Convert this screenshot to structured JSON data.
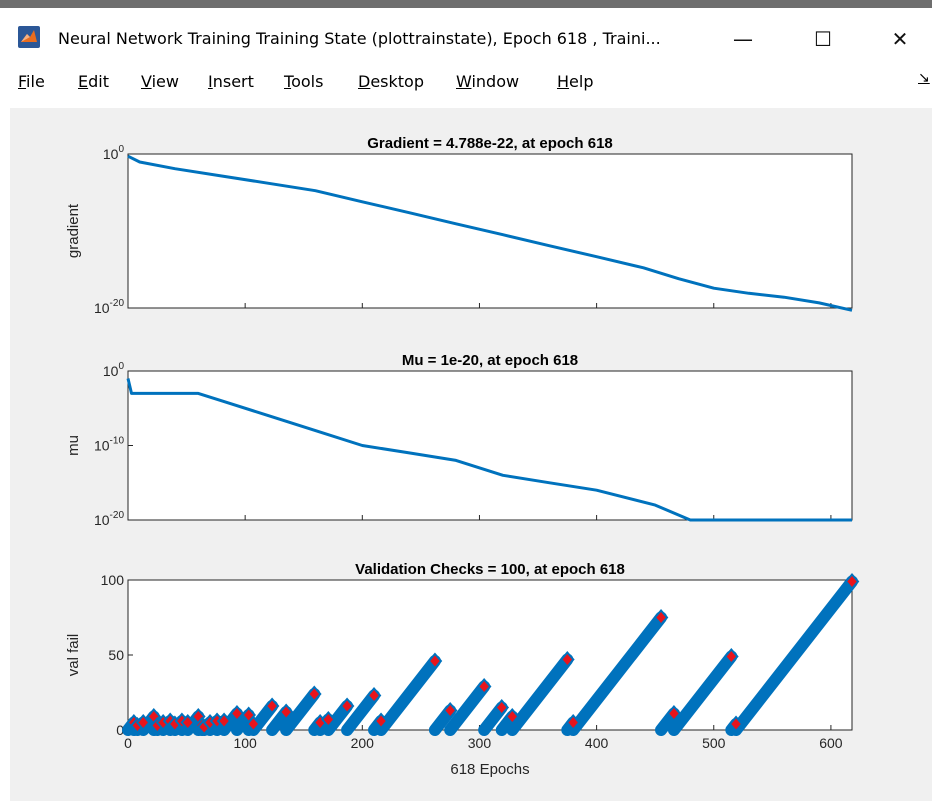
{
  "window": {
    "title": "Neural Network Training Training State (plottrainstate), Epoch 618 , Traini...",
    "minimize_glyph": "—",
    "maximize_glyph": "☐",
    "close_glyph": "✕"
  },
  "menu": [
    "File",
    "Edit",
    "View",
    "Insert",
    "Tools",
    "Desktop",
    "Window",
    "Help"
  ],
  "toolbar_arrow_glyph": "↘",
  "colors": {
    "line": "#0072bd",
    "marker": "#e8141c",
    "figure_bg": "#f0f0f0"
  },
  "chart_data": [
    {
      "type": "line",
      "title": "Gradient = 4.788e-22, at epoch 618",
      "ylabel": "gradient",
      "yscale": "log",
      "ylim": [
        1e-21,
        1
      ],
      "xlim": [
        0,
        618
      ],
      "ytick_labels": [
        {
          "base": "10",
          "exp": "0"
        },
        {
          "base": "10",
          "exp": "-20"
        }
      ],
      "series": [
        {
          "x": [
            0,
            10,
            40,
            80,
            120,
            160,
            200,
            240,
            280,
            320,
            360,
            400,
            440,
            470,
            500,
            530,
            560,
            590,
            618
          ],
          "y": [
            0.5,
            0.08,
            0.01,
            0.001,
            0.0001,
            1e-05,
            3e-07,
            1e-08,
            3e-10,
            1e-11,
            3e-13,
            1e-14,
            3e-16,
            1e-17,
            5e-19,
            1e-19,
            3e-20,
            5e-21,
            4.788e-22
          ]
        }
      ]
    },
    {
      "type": "line",
      "title": "Mu = 1e-20, at epoch 618",
      "ylabel": "mu",
      "yscale": "log",
      "ylim": [
        1e-20,
        1
      ],
      "xlim": [
        0,
        618
      ],
      "ytick_labels": [
        {
          "base": "10",
          "exp": "0"
        },
        {
          "base": "10",
          "exp": "-10"
        },
        {
          "base": "10",
          "exp": "-20"
        }
      ],
      "series": [
        {
          "x": [
            0,
            3,
            8,
            60,
            80,
            120,
            160,
            200,
            240,
            280,
            320,
            360,
            400,
            450,
            480,
            618
          ],
          "y": [
            0.1,
            0.001,
            0.001,
            0.001,
            0.0001,
            1e-06,
            1e-08,
            1e-10,
            1e-11,
            1e-12,
            1e-14,
            1e-15,
            1e-16,
            1e-18,
            1e-20,
            1e-20
          ]
        }
      ]
    },
    {
      "type": "line",
      "title": "Validation Checks = 100, at epoch 618",
      "ylabel": "val fail",
      "xlabel": "618 Epochs",
      "xlim": [
        0,
        618
      ],
      "ylim": [
        0,
        100
      ],
      "xticks": [
        0,
        100,
        200,
        300,
        400,
        500,
        600
      ],
      "yticks": [
        0,
        50,
        100
      ],
      "series": [
        {
          "segments": [
            [
              0,
              5
            ],
            [
              5,
              8
            ],
            [
              8,
              13
            ],
            [
              13,
              22
            ],
            [
              22,
              25
            ],
            [
              25,
              30
            ],
            [
              30,
              36
            ],
            [
              36,
              40
            ],
            [
              40,
              46
            ],
            [
              46,
              51
            ],
            [
              51,
              60
            ],
            [
              60,
              63
            ],
            [
              63,
              65
            ],
            [
              65,
              70
            ],
            [
              70,
              76
            ],
            [
              76,
              82
            ],
            [
              82,
              93
            ],
            [
              93,
              103
            ],
            [
              103,
              107
            ],
            [
              107,
              123
            ],
            [
              123,
              135
            ],
            [
              135,
              159
            ],
            [
              159,
              164
            ],
            [
              164,
              171
            ],
            [
              171,
              187
            ],
            [
              187,
              210
            ],
            [
              210,
              216
            ],
            [
              216,
              262
            ],
            [
              262,
              275
            ],
            [
              275,
              304
            ],
            [
              304,
              319
            ],
            [
              319,
              328
            ],
            [
              328,
              375
            ],
            [
              375,
              380
            ],
            [
              380,
              455
            ],
            [
              455,
              466
            ],
            [
              466,
              515
            ],
            [
              515,
              519
            ],
            [
              519,
              618
            ]
          ]
        }
      ]
    }
  ]
}
